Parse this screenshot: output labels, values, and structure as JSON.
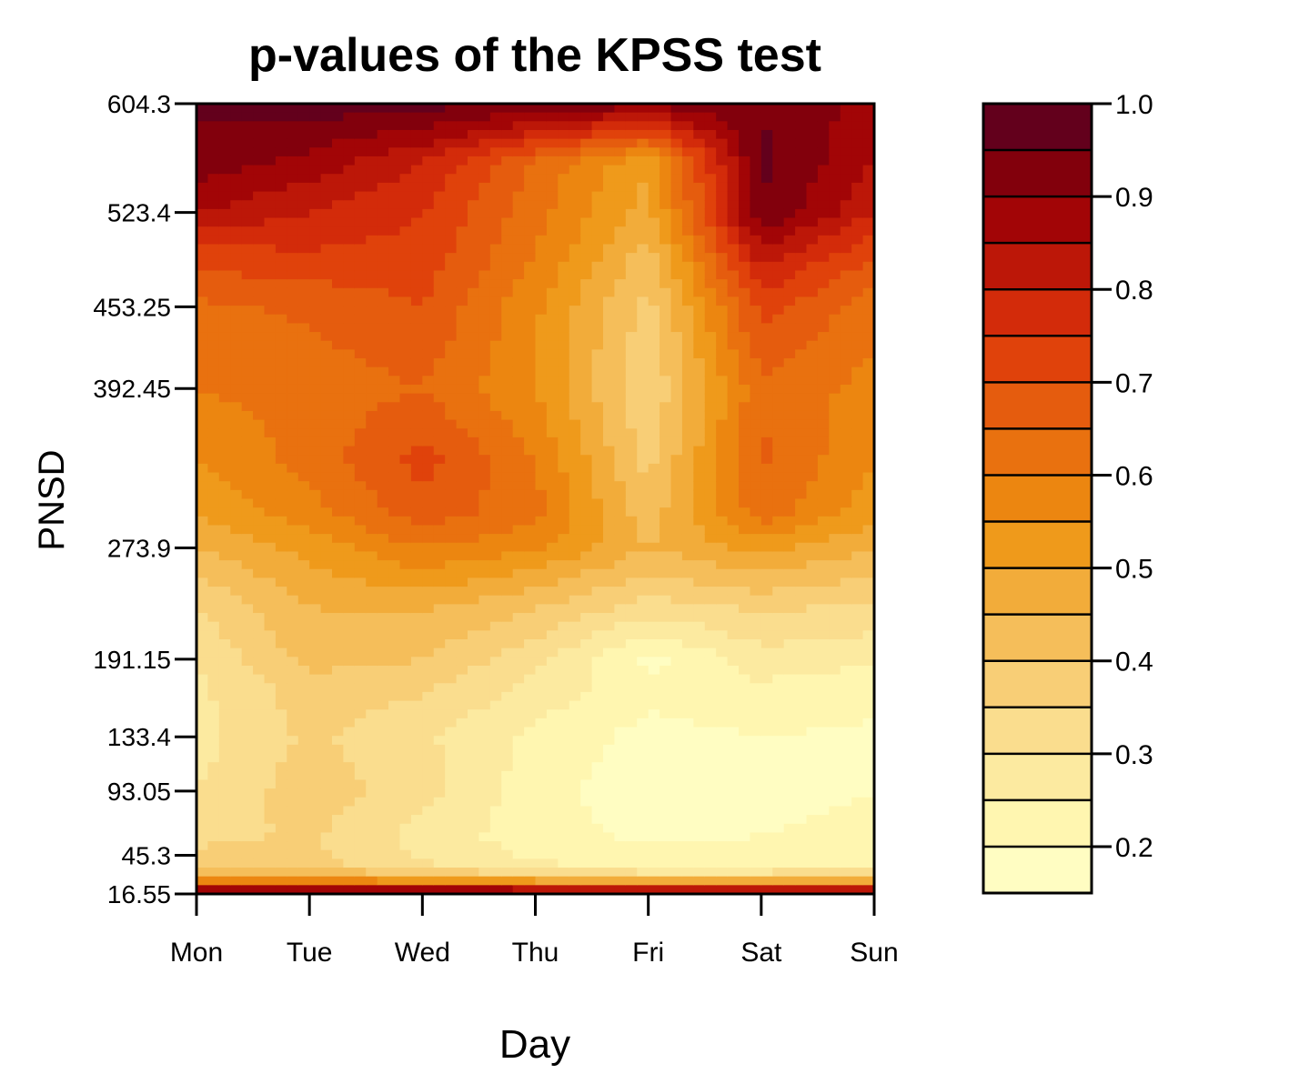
{
  "chart_data": {
    "type": "heatmap",
    "title": "p-values of the KPSS test",
    "xlabel": "Day",
    "ylabel": "PNSD",
    "x": [
      "Mon",
      "Tue",
      "Wed",
      "Thu",
      "Fri",
      "Sat",
      "Sun"
    ],
    "y_ticks": [
      16.55,
      45.3,
      93.05,
      133.4,
      191.15,
      273.9,
      392.45,
      453.25,
      523.4,
      604.3
    ],
    "y_tick_labels": [
      "16.55",
      "45.3",
      "93.05",
      "133.4",
      "191.15",
      "273.9",
      "392.45",
      "453.25",
      "523.4",
      "604.3"
    ],
    "ylim": [
      16.55,
      604.3
    ],
    "y_rows": [
      16.55,
      20,
      25,
      30,
      40,
      60,
      93.05,
      133.4,
      170,
      191.15,
      230,
      273.9,
      300,
      340,
      392.45,
      453.25,
      490,
      523.4,
      560,
      604.3
    ],
    "values": [
      [
        0.95,
        0.98,
        0.97,
        0.96,
        0.95,
        0.95,
        0.95
      ],
      [
        0.85,
        0.88,
        0.86,
        0.84,
        0.82,
        0.82,
        0.82
      ],
      [
        0.6,
        0.62,
        0.58,
        0.55,
        0.52,
        0.52,
        0.5
      ],
      [
        0.45,
        0.45,
        0.4,
        0.36,
        0.33,
        0.33,
        0.34
      ],
      [
        0.38,
        0.36,
        0.3,
        0.25,
        0.22,
        0.22,
        0.24
      ],
      [
        0.33,
        0.36,
        0.28,
        0.22,
        0.19,
        0.2,
        0.21
      ],
      [
        0.3,
        0.38,
        0.32,
        0.22,
        0.17,
        0.19,
        0.2
      ],
      [
        0.28,
        0.36,
        0.31,
        0.24,
        0.18,
        0.2,
        0.19
      ],
      [
        0.29,
        0.38,
        0.36,
        0.28,
        0.22,
        0.24,
        0.22
      ],
      [
        0.3,
        0.42,
        0.4,
        0.32,
        0.18,
        0.28,
        0.26
      ],
      [
        0.35,
        0.45,
        0.46,
        0.4,
        0.33,
        0.36,
        0.34
      ],
      [
        0.45,
        0.52,
        0.6,
        0.56,
        0.45,
        0.52,
        0.45
      ],
      [
        0.5,
        0.58,
        0.68,
        0.62,
        0.42,
        0.63,
        0.52
      ],
      [
        0.55,
        0.62,
        0.72,
        0.6,
        0.38,
        0.66,
        0.55
      ],
      [
        0.6,
        0.62,
        0.65,
        0.55,
        0.35,
        0.64,
        0.58
      ],
      [
        0.64,
        0.66,
        0.7,
        0.56,
        0.38,
        0.72,
        0.62
      ],
      [
        0.72,
        0.74,
        0.73,
        0.6,
        0.42,
        0.82,
        0.7
      ],
      [
        0.85,
        0.8,
        0.75,
        0.62,
        0.48,
        0.95,
        0.8
      ],
      [
        0.93,
        0.88,
        0.8,
        0.64,
        0.5,
        0.96,
        0.85
      ],
      [
        0.96,
        0.98,
        0.97,
        0.95,
        0.92,
        0.95,
        0.88
      ]
    ],
    "colorbar": {
      "ticks": [
        1.0,
        0.9,
        0.8,
        0.7,
        0.6,
        0.5,
        0.4,
        0.3,
        0.2
      ],
      "tick_labels": [
        "1.0",
        "0.9",
        "0.8",
        "0.7",
        "0.6",
        "0.5",
        "0.4",
        "0.3",
        "0.2"
      ],
      "range": [
        0.15,
        1.0
      ],
      "levels": [
        0.15,
        0.2,
        0.25,
        0.3,
        0.35,
        0.4,
        0.45,
        0.5,
        0.55,
        0.6,
        0.65,
        0.7,
        0.75,
        0.8,
        0.85,
        0.9,
        0.95,
        1.0
      ],
      "colors": [
        "#FFFDC2",
        "#FFF6B0",
        "#FCEAA0",
        "#FADD8E",
        "#F8CE76",
        "#F5BE5A",
        "#F2AC3A",
        "#EF9A1B",
        "#EC8610",
        "#E9710F",
        "#E55C0E",
        "#E0420B",
        "#D32B0A",
        "#BC1708",
        "#A20506",
        "#82000C",
        "#63001C"
      ]
    },
    "grid": false,
    "legend": "colorbar-right"
  }
}
